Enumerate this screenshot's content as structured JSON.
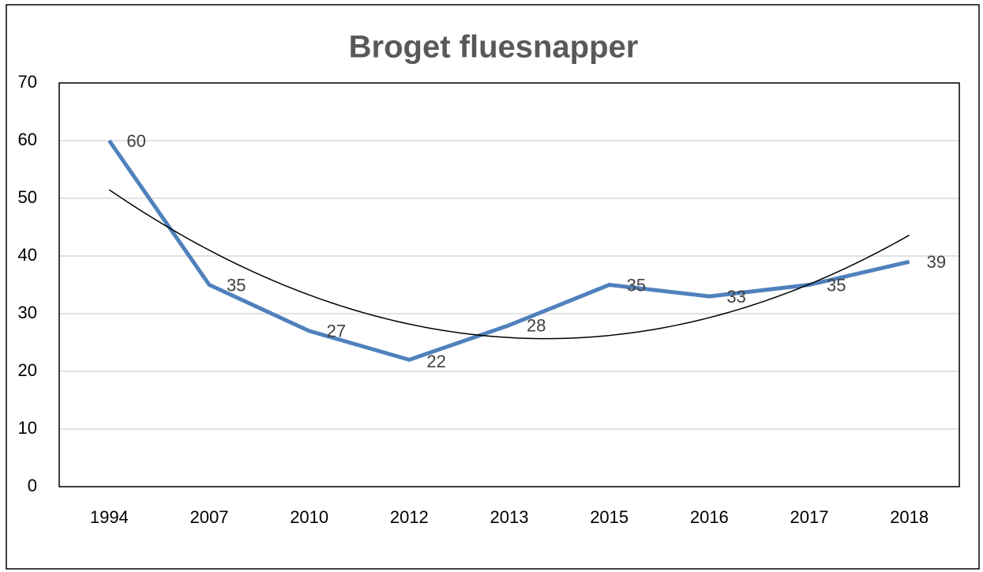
{
  "chart_data": {
    "type": "line",
    "title": "Broget fluesnapper",
    "categories": [
      "1994",
      "2007",
      "2010",
      "2012",
      "2013",
      "2015",
      "2016",
      "2017",
      "2018"
    ],
    "series": [
      {
        "name": "Broget fluesnapper",
        "color": "#4f81bd",
        "values": [
          60,
          35,
          27,
          22,
          28,
          35,
          33,
          35,
          39
        ]
      }
    ],
    "ylim": [
      0,
      70
    ],
    "yticks": [
      0,
      10,
      20,
      30,
      40,
      50,
      60,
      70
    ],
    "grid": true,
    "data_labels": true,
    "trendline": {
      "type": "polynomial",
      "order": 2,
      "color": "#000000"
    }
  }
}
